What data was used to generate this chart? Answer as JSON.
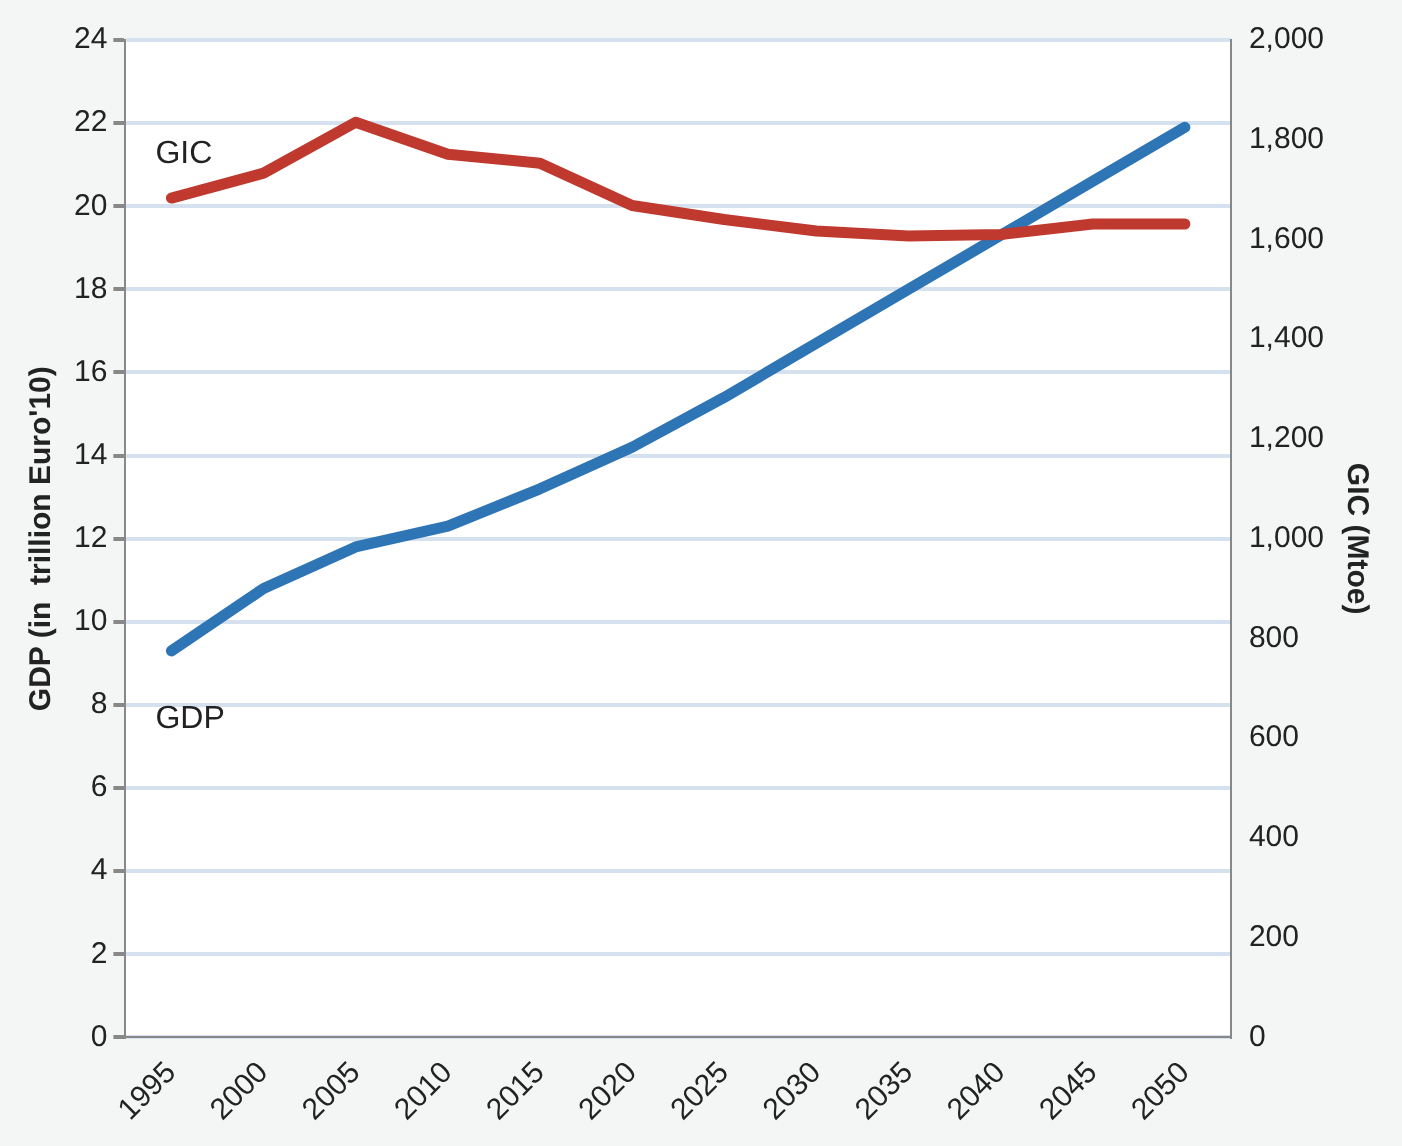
{
  "chart_data": {
    "type": "line",
    "categories": [
      "1995",
      "2000",
      "2005",
      "2010",
      "2015",
      "2020",
      "2025",
      "2030",
      "2035",
      "2040",
      "2045",
      "2050"
    ],
    "series": [
      {
        "name": "GIC",
        "color": "#c0392f",
        "axis": "y2",
        "values": [
          1683,
          1733,
          1835,
          1771,
          1753,
          1668,
          1640,
          1617,
          1607,
          1610,
          1631,
          1631
        ]
      },
      {
        "name": "GDP",
        "color": "#2e75b6",
        "values": [
          9.3,
          10.8,
          11.8,
          12.3,
          13.2,
          14.2,
          15.4,
          16.7,
          18.0,
          19.3,
          20.6,
          21.9
        ]
      }
    ],
    "ylabel": "GDP (in  trillion Euro'10)",
    "y2label": "GIC (Mtoe)",
    "ylim": [
      0,
      24
    ],
    "yticks": [
      0,
      2,
      4,
      6,
      8,
      10,
      12,
      14,
      16,
      18,
      20,
      22,
      24
    ],
    "y2lim": [
      0,
      2000
    ],
    "y2ticks": [
      {
        "value": 0,
        "label": "0"
      },
      {
        "value": 200,
        "label": "200"
      },
      {
        "value": 400,
        "label": "400"
      },
      {
        "value": 600,
        "label": "600"
      },
      {
        "value": 800,
        "label": "800"
      },
      {
        "value": 1000,
        "label": "1,000"
      },
      {
        "value": 1200,
        "label": "1,200"
      },
      {
        "value": 1400,
        "label": "1,400"
      },
      {
        "value": 1600,
        "label": "1,600"
      },
      {
        "value": 1800,
        "label": "1,800"
      },
      {
        "value": 2000,
        "label": "2,000"
      }
    ],
    "grid": "y",
    "legend": false,
    "marker": "none",
    "line_style": "solid"
  }
}
